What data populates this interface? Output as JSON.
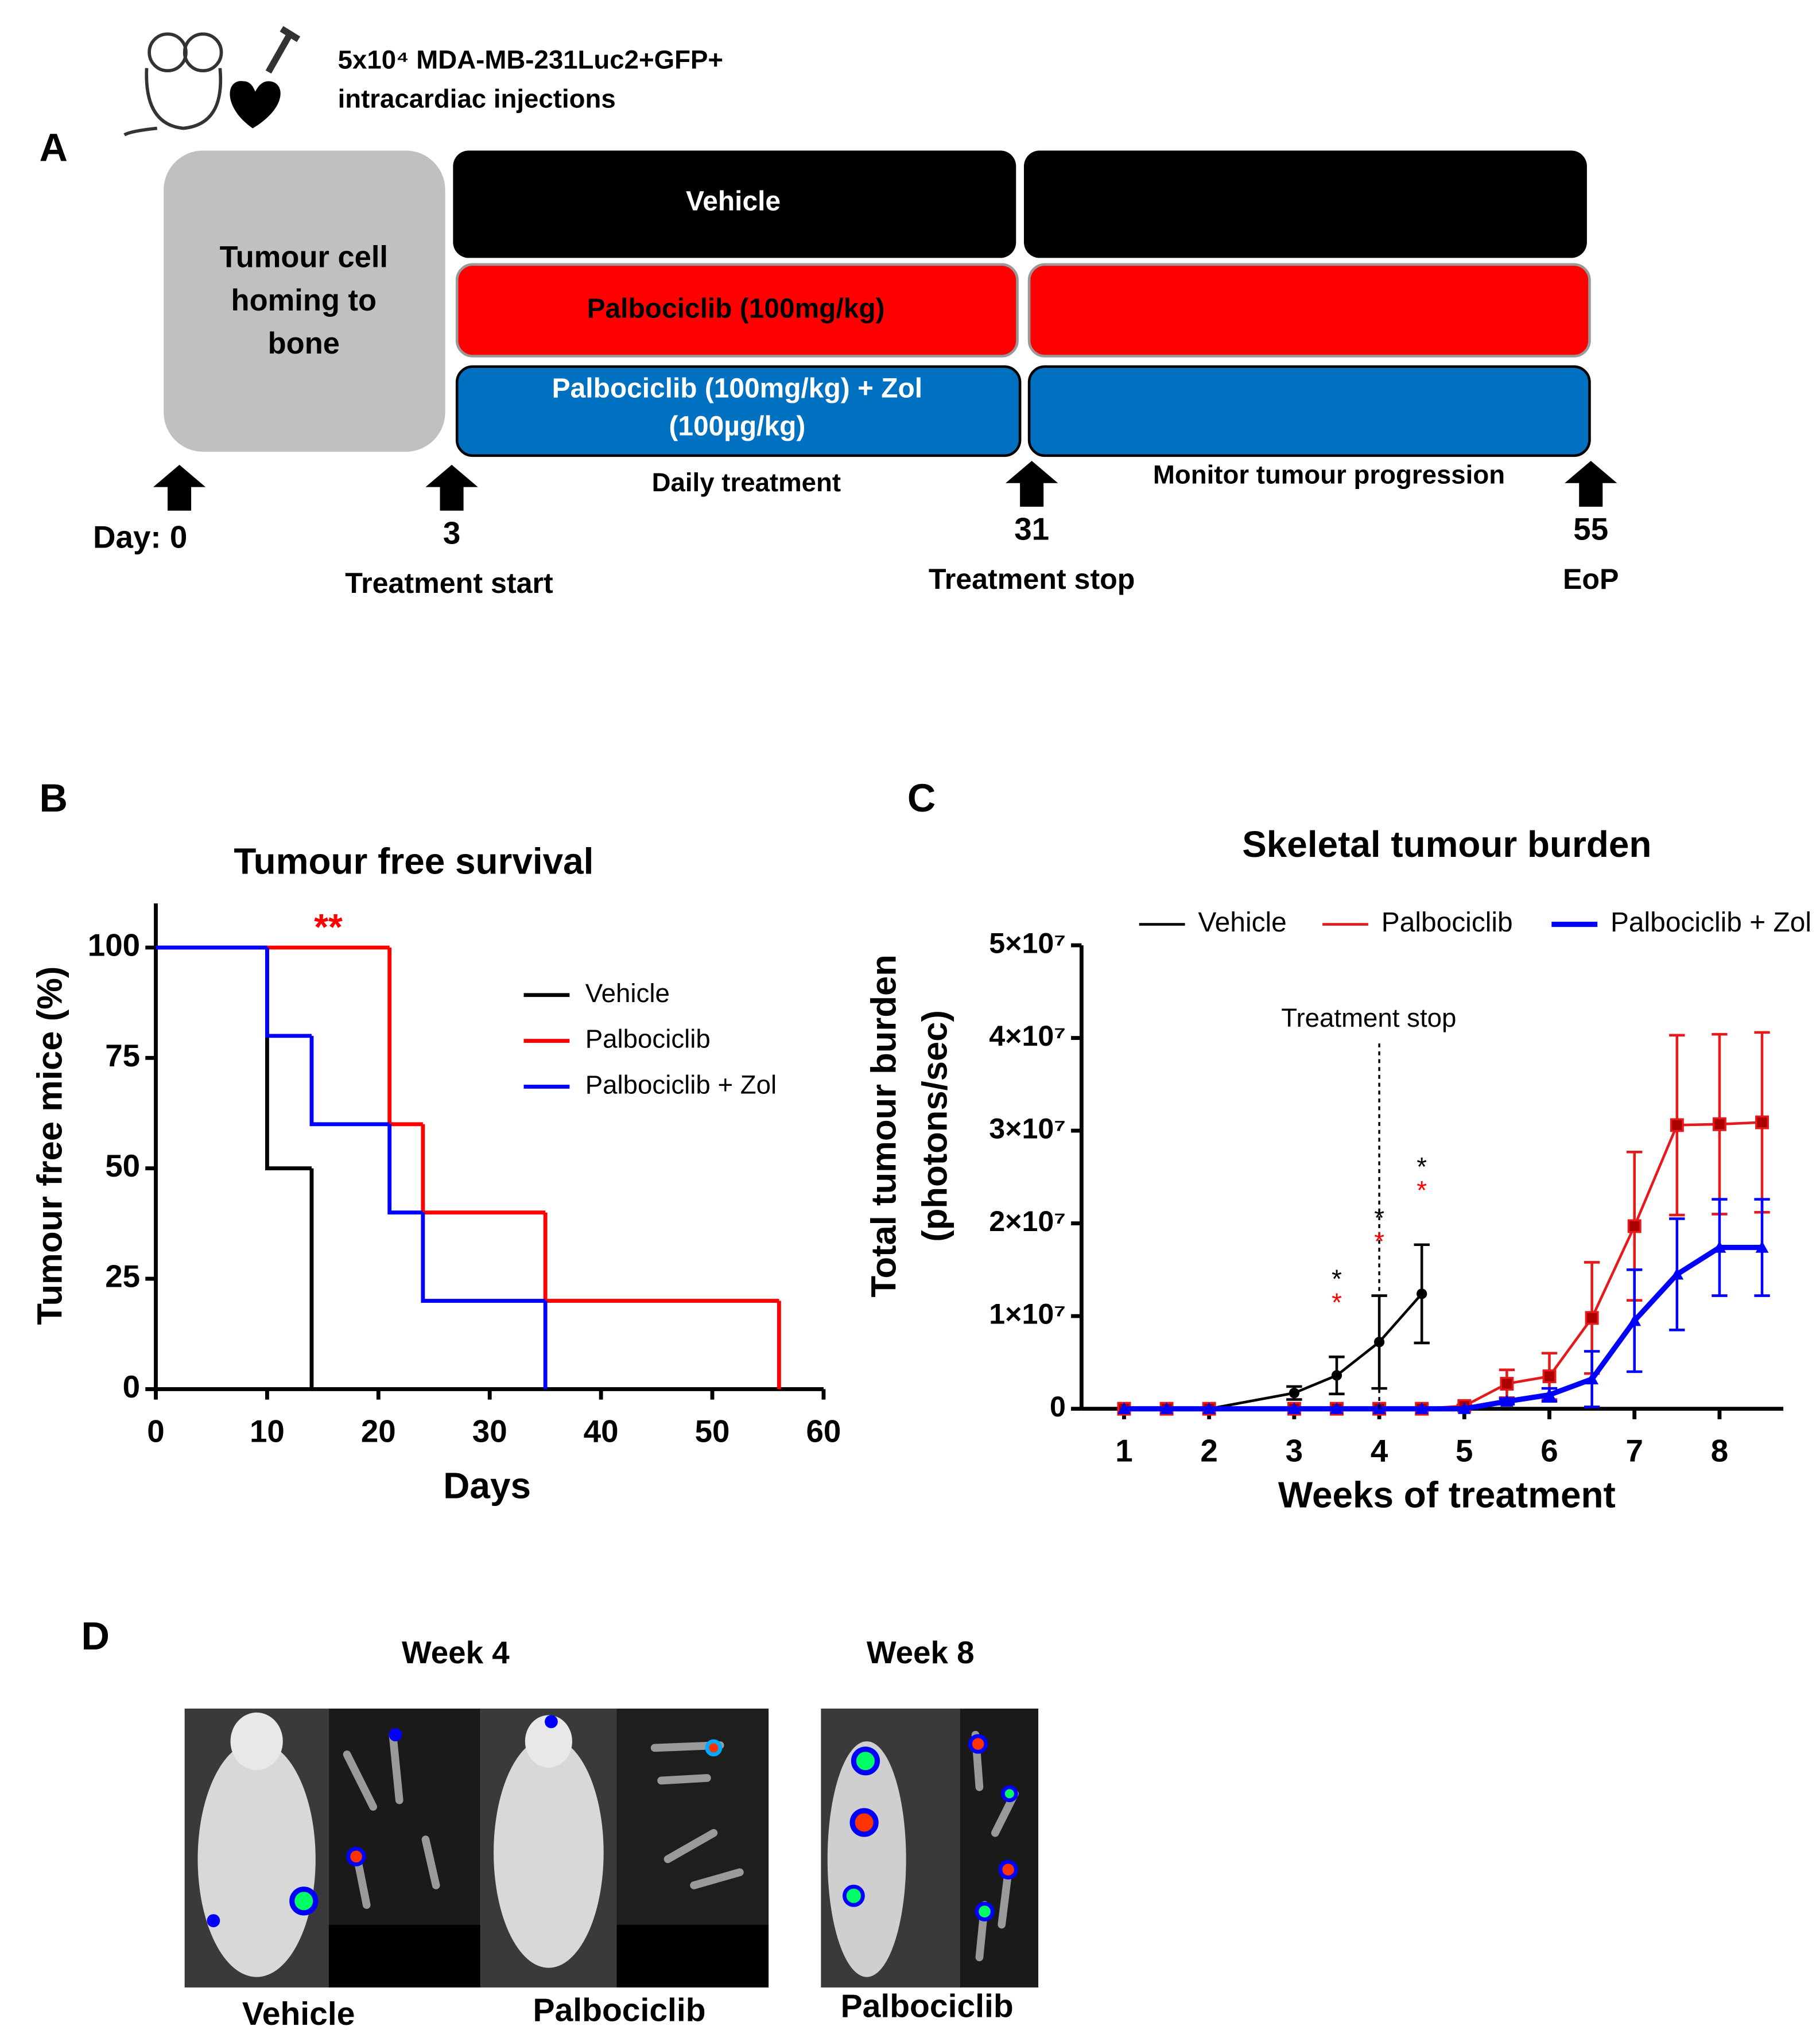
{
  "panel_a": {
    "label": "A",
    "header": [
      "5x10⁴ MDA-MB-231Luc2+GFP+",
      "intracardiac injections"
    ],
    "homing": [
      "Tumour cell",
      "homing to",
      "bone"
    ],
    "vehicle": "Vehicle",
    "palbociclib": "Palbociclib (100mg/kg)",
    "combo": [
      "Palbociclib (100mg/kg) + Zol",
      "(100µg/kg)"
    ],
    "phases": [
      "Daily treatment",
      "Monitor tumour progression"
    ],
    "timeline": [
      {
        "day": "Day: 0"
      },
      {
        "day": "3",
        "event": "Treatment start"
      },
      {
        "day": "31",
        "event": "Treatment stop"
      },
      {
        "day": "55",
        "event": "EoP"
      }
    ]
  },
  "chart_data": [
    {
      "type": "step",
      "panel": "B",
      "title": "Tumour free survival",
      "xlabel": "Days",
      "ylabel": "Tumour free mice (%)",
      "xlim": [
        0,
        60
      ],
      "xticks": [
        0,
        10,
        20,
        30,
        40,
        50,
        60
      ],
      "ylim": [
        0,
        110
      ],
      "yticks": [
        0,
        25,
        50,
        75,
        100
      ],
      "legend": "right",
      "series": [
        {
          "name": "Vehicle",
          "color": "#000000",
          "x": [
            0,
            10,
            14
          ],
          "values": [
            100,
            50,
            0
          ]
        },
        {
          "name": "Palbociclib",
          "color": "#ff0000",
          "x": [
            0,
            21,
            24,
            35,
            56
          ],
          "values": [
            100,
            60,
            40,
            20,
            0
          ]
        },
        {
          "name": "Palbociclib + Zol",
          "color": "#0000ff",
          "x": [
            0,
            10,
            14,
            21,
            24,
            35
          ],
          "values": [
            100,
            80,
            60,
            40,
            20,
            0
          ]
        }
      ],
      "annotations": [
        {
          "text": "**",
          "x": 15.5,
          "y": 104,
          "color": "#ff0000"
        }
      ]
    },
    {
      "type": "line",
      "panel": "C",
      "title": "Skeletal tumour burden",
      "xlabel": "Weeks of treatment",
      "ylabel": [
        "Total tumour burden",
        "(photons/sec)"
      ],
      "xlim": [
        0.5,
        8.75
      ],
      "xticks": [
        1,
        2,
        3,
        4,
        5,
        6,
        7,
        8
      ],
      "ylim": [
        0,
        50000000
      ],
      "yticks": [
        0,
        {
          "value": 10000000,
          "label": "1×10⁷"
        },
        {
          "value": 20000000,
          "label": "2×10⁷"
        },
        {
          "value": 30000000,
          "label": "3×10⁷"
        },
        {
          "value": 40000000,
          "label": "4×10⁷"
        },
        {
          "value": 50000000,
          "label": "5×10⁷"
        }
      ],
      "legend": "top",
      "series": [
        {
          "name": "Vehicle",
          "color": "#000000",
          "marker": "circle",
          "x": [
            1,
            1.5,
            2,
            3,
            3.5,
            4,
            4.5
          ],
          "values": [
            0,
            0,
            0,
            1700000,
            3600000,
            7200000,
            12400000
          ],
          "errors": [
            0,
            0,
            0,
            700000,
            2000000,
            5000000,
            5300000
          ]
        },
        {
          "name": "Palbociclib",
          "color": "#e41a1c",
          "marker": "square",
          "x": [
            1,
            1.5,
            2,
            3,
            3.5,
            4,
            4.5,
            5,
            5.5,
            6,
            6.5,
            7,
            7.5,
            8,
            8.5
          ],
          "values": [
            0,
            0,
            0,
            0,
            0,
            0,
            0,
            300000,
            2700000,
            3500000,
            9800000,
            19700000,
            30600000,
            30700000,
            30900000
          ],
          "errors": [
            0,
            0,
            0,
            0,
            0,
            0,
            0,
            100000,
            1500000,
            2500000,
            6000000,
            8000000,
            9700000,
            9700000,
            9700000
          ]
        },
        {
          "name": "Palbociclib + Zol",
          "color": "#0000ff",
          "marker": "triangle",
          "x": [
            1,
            1.5,
            2,
            3,
            3.5,
            4,
            4.5,
            5,
            5.5,
            6,
            6.5,
            7,
            7.5,
            8,
            8.5
          ],
          "values": [
            0,
            0,
            0,
            0,
            0,
            0,
            0,
            0,
            800000,
            1500000,
            3200000,
            9500000,
            14500000,
            17400000,
            17400000
          ],
          "errors": [
            0,
            0,
            0,
            0,
            0,
            0,
            0,
            0,
            300000,
            700000,
            3000000,
            5500000,
            6000000,
            5200000,
            5200000
          ]
        }
      ],
      "annotations": [
        {
          "text": "Treatment stop",
          "x": 4,
          "line": "dashed"
        },
        {
          "text": "*",
          "x": 3.5,
          "color": "#000000",
          "level": 2
        },
        {
          "text": "*",
          "x": 3.5,
          "color": "#ff0000",
          "level": 1
        },
        {
          "text": "*",
          "x": 4,
          "color": "#000000",
          "level": 2
        },
        {
          "text": "*",
          "x": 4,
          "color": "#ff0000",
          "level": 1
        },
        {
          "text": "*",
          "x": 4.5,
          "color": "#000000",
          "level": 2
        },
        {
          "text": "*",
          "x": 4.5,
          "color": "#ff0000",
          "level": 1
        }
      ]
    }
  ],
  "panel_d": {
    "label": "D",
    "weeks": [
      "Week 4",
      "Week 8"
    ],
    "captions": [
      "Vehicle",
      "Palbociclib",
      "Palbociclib"
    ]
  }
}
